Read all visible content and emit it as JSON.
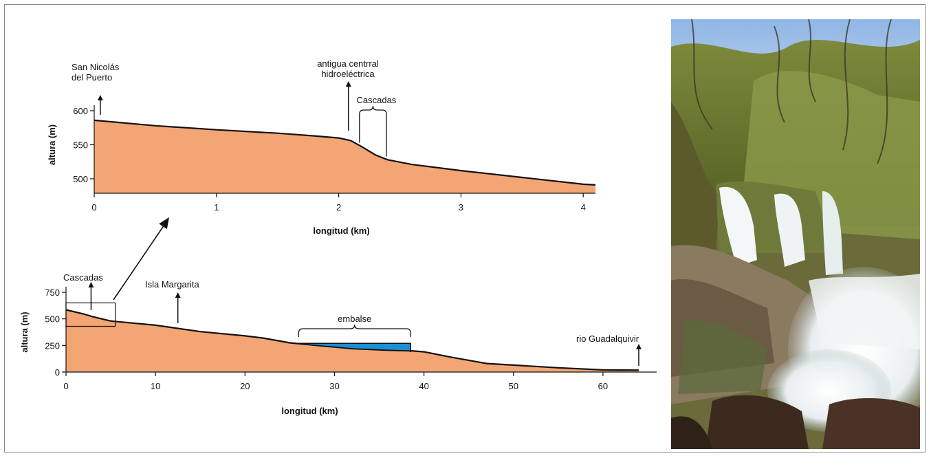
{
  "colors": {
    "terrain": "#f4a574",
    "profile_line": "#111111",
    "reservoir": "#1a8fd4",
    "frame": "#8a8a8a"
  },
  "chart_data": [
    {
      "type": "area",
      "title": "",
      "xlabel": "longitud (km)",
      "ylabel": "altura (m)",
      "xlim": [
        0,
        4.1
      ],
      "ylim": [
        477,
        600
      ],
      "xticks": [
        0,
        1,
        2,
        3,
        4
      ],
      "yticks": [
        500,
        550,
        600
      ],
      "grid": false,
      "series": [
        {
          "x": [
            0,
            0.5,
            1.0,
            1.5,
            1.8,
            2.0,
            2.1,
            2.2,
            2.3,
            2.4,
            2.6,
            3.0,
            3.5,
            4.0,
            4.1
          ],
          "y": [
            586,
            578,
            572,
            567,
            563,
            560,
            556,
            546,
            535,
            528,
            521,
            512,
            502,
            492,
            491
          ]
        }
      ],
      "annotations": [
        {
          "id": "san-nicolas",
          "lines": [
            "San Nicolás",
            "del Puerto"
          ],
          "x": 0.05,
          "kind": "arrow"
        },
        {
          "id": "central",
          "lines": [
            "antigua centrral",
            "hidroeléctrica"
          ],
          "x": 2.08,
          "kind": "arrow"
        },
        {
          "id": "cascadas-top",
          "lines": [
            "Cascadas"
          ],
          "x_from": 2.17,
          "x_to": 2.39,
          "kind": "bracket"
        }
      ]
    },
    {
      "type": "area",
      "title": "",
      "xlabel": "longitud (km)",
      "ylabel": "altura (m)",
      "xlim": [
        0,
        66
      ],
      "ylim": [
        0,
        750
      ],
      "xticks": [
        0,
        10,
        20,
        30,
        40,
        50,
        60
      ],
      "yticks": [
        0,
        250,
        500,
        750
      ],
      "grid": false,
      "series": [
        {
          "x": [
            0,
            2,
            3,
            5,
            10,
            15,
            20,
            22,
            25,
            28,
            32,
            36,
            38.5,
            38.6,
            40,
            43,
            47,
            50,
            55,
            60,
            64
          ],
          "y": [
            585,
            545,
            520,
            480,
            440,
            380,
            340,
            320,
            275,
            250,
            220,
            205,
            200,
            200,
            190,
            140,
            80,
            65,
            40,
            20,
            18
          ]
        }
      ],
      "reservoir": {
        "x_from": 26,
        "x_to": 38.5,
        "level": 270
      },
      "annotations": [
        {
          "id": "cascadas-bottom",
          "lines": [
            "Cascadas"
          ],
          "x": 2.8,
          "kind": "arrow"
        },
        {
          "id": "isla",
          "lines": [
            "Isla Margarita"
          ],
          "x": 12.5,
          "kind": "arrow"
        },
        {
          "id": "embalse",
          "lines": [
            "embalse"
          ],
          "x_from": 26,
          "x_to": 38.5,
          "kind": "bracket"
        },
        {
          "id": "rio",
          "lines": [
            "rio Guadalquivir"
          ],
          "x": 64,
          "kind": "arrow"
        }
      ],
      "zoom_box": {
        "x_from": 0,
        "x_to": 5.5,
        "y_from": 430,
        "y_to": 650
      }
    }
  ]
}
